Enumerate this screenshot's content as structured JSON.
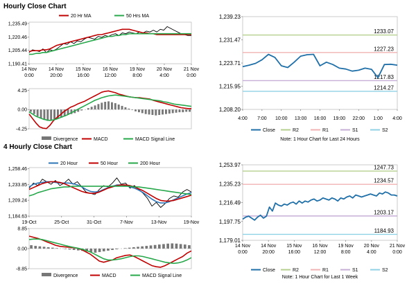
{
  "sections": {
    "hourly": "Hourly Close Chart",
    "four_hourly": "4 Hourly Close Chart"
  },
  "colors": {
    "close": "#1f6fa8",
    "r2": "#b5cf8d",
    "r1": "#f0b2b2",
    "s1": "#c6aed6",
    "s2": "#8fd2e6",
    "ma_short": "#c00000",
    "ma_long": "#27a84b",
    "ma_200": "#27a84b",
    "ma_20": "#2e75b6",
    "divergence": "#777777",
    "macd": "#c00000",
    "signal": "#27a84b",
    "price": "#000000"
  },
  "chart_data": [
    {
      "id": "hourly-ma",
      "type": "line",
      "title": "Hourly Close Chart",
      "ylim": [
        1190.41,
        1237.0
      ],
      "yticks": [
        "1,235.49",
        "1,220.46",
        "1,205.44",
        "1,190.41"
      ],
      "ytick_values": [
        1235.49,
        1220.46,
        1205.44,
        1190.41
      ],
      "xticks": [
        "14 Nov\n0:00",
        "14 Nov\n20:00",
        "15 Nov\n16:00",
        "16 Nov\n12:00",
        "19 Nov\n8:00",
        "20 Nov\n4:00",
        "21 Nov\n0:00"
      ],
      "legend": [
        "20 Hr MA",
        "50 Hrs MA"
      ],
      "series": [
        {
          "name": "Price",
          "values": [
            1203,
            1206,
            1205,
            1204,
            1207,
            1203,
            1206,
            1205,
            1207,
            1210,
            1213,
            1212,
            1215,
            1213,
            1216,
            1215,
            1218,
            1220,
            1219,
            1218,
            1221,
            1220,
            1222,
            1221,
            1223,
            1224,
            1222,
            1225,
            1224,
            1226,
            1225,
            1224,
            1226,
            1225,
            1227,
            1226,
            1228,
            1226,
            1229,
            1228,
            1232,
            1230,
            1228,
            1226,
            1224,
            1223,
            1222,
            1222
          ]
        },
        {
          "name": "20 Hr MA",
          "values": [
            1204,
            1205,
            1205,
            1205,
            1206,
            1206,
            1207,
            1209,
            1211,
            1212,
            1213,
            1214,
            1215,
            1216,
            1217,
            1218,
            1219,
            1220,
            1221,
            1222,
            1223,
            1223,
            1224,
            1225,
            1226,
            1227,
            1228,
            1229,
            1229,
            1229,
            1228,
            1227,
            1226,
            1225,
            1225,
            1224,
            1224,
            1223,
            1223,
            1223,
            1223,
            1223,
            1223,
            1223,
            1223,
            1223,
            1223,
            1223
          ]
        },
        {
          "name": "50 Hrs MA",
          "values": [
            1201,
            1201,
            1202,
            1202,
            1203,
            1203,
            1204,
            1205,
            1206,
            1207,
            1208,
            1209,
            1210,
            1211,
            1212,
            1213,
            1214,
            1215,
            1216,
            1217,
            1218,
            1219,
            1220,
            1221,
            1221,
            1222,
            1222,
            1223,
            1223,
            1224,
            1224,
            1224,
            1224,
            1224,
            1224,
            1224,
            1224,
            1224,
            1224,
            1224,
            1224,
            1224,
            1224,
            1224,
            1224,
            1224,
            1224,
            1224
          ]
        }
      ]
    },
    {
      "id": "hourly-macd",
      "type": "bar",
      "ylim": [
        -4.25,
        4.6
      ],
      "yticks": [
        "4.25",
        "0.00",
        "-4.25"
      ],
      "ytick_values": [
        4.25,
        0,
        -4.25
      ],
      "legend": [
        "Divergence",
        "MACD",
        "MACD Signal Line"
      ],
      "series": [
        {
          "name": "Divergence",
          "values": [
            -0.5,
            -1,
            -1.5,
            -2,
            -2.3,
            -2.5,
            -2.4,
            -2.2,
            -2,
            -1.8,
            -1.5,
            -1.2,
            -1,
            -0.8,
            -0.5,
            -0.2,
            0,
            0.3,
            0.6,
            0.9,
            1.2,
            1.5,
            1.7,
            1.8,
            1.6,
            1.4,
            1.1,
            0.8,
            0.5,
            0.2,
            -0.1,
            -0.4,
            -0.6,
            -0.8,
            -1,
            -1.1,
            -1.2,
            -1.3,
            -1.2,
            -1.1,
            -1,
            -0.9,
            -0.8,
            -0.7,
            -0.6,
            -0.6,
            -0.5,
            -0.5
          ]
        },
        {
          "name": "MACD",
          "values": [
            -1,
            -2,
            -3,
            -3.8,
            -4.1,
            -4.2,
            -3.5,
            -2.5,
            -1.8,
            -1.2,
            -0.5,
            0,
            0.5,
            0.8,
            1.2,
            1.5,
            1.8,
            2.2,
            2.6,
            3.0,
            3.4,
            3.8,
            4.0,
            4.1,
            3.9,
            3.7,
            3.4,
            3.2,
            3.0,
            2.8,
            2.7,
            2.6,
            2.6,
            2.5,
            2.4,
            2.3,
            2.0,
            1.8,
            1.6,
            1.4,
            1.2,
            1.0,
            0.8,
            0.6,
            0.4,
            0.3,
            0.2,
            0.2
          ]
        },
        {
          "name": "MACD Signal Line",
          "values": [
            -0.5,
            -1,
            -1.5,
            -1.8,
            -2.1,
            -2.3,
            -2.4,
            -2.3,
            -2.1,
            -1.8,
            -1.5,
            -1.2,
            -0.8,
            -0.4,
            0,
            0.4,
            0.8,
            1.2,
            1.6,
            2.0,
            2.3,
            2.6,
            2.8,
            3.0,
            3.1,
            3.2,
            3.1,
            3.0,
            2.9,
            2.8,
            2.7,
            2.6,
            2.5,
            2.4,
            2.3,
            2.2,
            2.1,
            2.0,
            1.9,
            1.7,
            1.6,
            1.4,
            1.2,
            1.1,
            1.0,
            0.9,
            0.8,
            0.7
          ]
        }
      ]
    },
    {
      "id": "hourly-close",
      "type": "line",
      "ylim": [
        1208.2,
        1239.23
      ],
      "yticks": [
        "1,239.23",
        "1,231.47",
        "1,223.71",
        "1,215.95",
        "1,208.20"
      ],
      "ytick_values": [
        1239.23,
        1231.47,
        1223.71,
        1215.95,
        1208.2
      ],
      "xticks": [
        "4:00",
        "7:00",
        "10:00",
        "13:00",
        "16:00",
        "19:00",
        "22:00",
        "1:00",
        "4:00"
      ],
      "x_range": [
        0,
        24
      ],
      "levels": [
        {
          "name": "R2",
          "value": 1233.07,
          "label": "1233.07"
        },
        {
          "name": "R1",
          "value": 1227.23,
          "label": "1227.23"
        },
        {
          "name": "S1",
          "value": 1217.83,
          "label": "1217.83"
        },
        {
          "name": "S2",
          "value": 1214.27,
          "label": "1214.27"
        }
      ],
      "series": [
        {
          "name": "Close",
          "x": [
            0,
            1,
            2,
            3,
            4,
            5,
            6,
            7,
            8,
            9,
            10,
            11,
            12,
            13,
            14,
            15,
            16,
            17,
            18,
            19,
            20,
            21,
            22,
            23,
            24
          ],
          "values": [
            1222.5,
            1223.0,
            1223.6,
            1224.8,
            1226.6,
            1225.6,
            1222.8,
            1222.2,
            1224.0,
            1226.0,
            1226.5,
            1226.6,
            1222.8,
            1224.0,
            1223.2,
            1222.0,
            1221.7,
            1221.0,
            1221.3,
            1222.0,
            1221.6,
            1218.8,
            1223.2,
            1223.3,
            1223.0
          ]
        }
      ],
      "legend": [
        "Close",
        "R2",
        "R1",
        "S1",
        "S2"
      ],
      "note": "Note: 1 Hour Chart for Last 24 Hours"
    },
    {
      "id": "four-hourly-ma",
      "type": "line",
      "title": "4 Hourly Close Chart",
      "ylim": [
        1184.63,
        1260.0
      ],
      "yticks": [
        "1,258.46",
        "1,233.85",
        "1,209.24",
        "1,184.63"
      ],
      "ytick_values": [
        1258.46,
        1233.85,
        1209.24,
        1184.63
      ],
      "xticks": [
        "19-Oct",
        "25-Oct",
        "31-Oct",
        "7-Nov",
        "13-Nov",
        "19-Nov"
      ],
      "legend": [
        "20 Hour",
        "50 Hour",
        "200 Hour"
      ],
      "series": [
        {
          "name": "Price",
          "values": [
            1228,
            1236,
            1232,
            1242,
            1238,
            1234,
            1240,
            1232,
            1236,
            1242,
            1234,
            1238,
            1230,
            1222,
            1220,
            1218,
            1226,
            1232,
            1230,
            1236,
            1244,
            1234,
            1236,
            1228,
            1232,
            1226,
            1220,
            1212,
            1200,
            1206,
            1198,
            1204,
            1212,
            1216,
            1214,
            1222,
            1226,
            1222
          ]
        },
        {
          "name": "20 Hour",
          "values": [
            1230,
            1234,
            1236,
            1237,
            1238,
            1238,
            1237,
            1236,
            1236,
            1236,
            1235,
            1233,
            1230,
            1226,
            1223,
            1222,
            1223,
            1226,
            1229,
            1231,
            1233,
            1233,
            1232,
            1230,
            1228,
            1225,
            1221,
            1216,
            1211,
            1207,
            1205,
            1205,
            1207,
            1210,
            1213,
            1216,
            1219,
            1221
          ]
        },
        {
          "name": "50 Hour",
          "values": [
            1226,
            1229,
            1232,
            1235,
            1237,
            1238,
            1238,
            1237,
            1235,
            1232,
            1229,
            1226,
            1223,
            1221,
            1220,
            1220,
            1222,
            1225,
            1228,
            1230,
            1232,
            1233,
            1233,
            1232,
            1230,
            1227,
            1224,
            1220,
            1216,
            1212,
            1209,
            1208,
            1208,
            1209,
            1211,
            1213,
            1215,
            1217
          ]
        },
        {
          "name": "200 Hour",
          "values": [
            1216,
            1218,
            1221,
            1223,
            1225,
            1227,
            1228,
            1229,
            1230,
            1230,
            1231,
            1231,
            1231,
            1231,
            1231,
            1231,
            1231,
            1231,
            1231,
            1231,
            1231,
            1231,
            1231,
            1231,
            1230,
            1230,
            1229,
            1228,
            1227,
            1226,
            1225,
            1224,
            1223,
            1222,
            1221,
            1220,
            1219,
            1218
          ]
        }
      ]
    },
    {
      "id": "four-hourly-macd",
      "type": "bar",
      "ylim": [
        -8.85,
        8.85
      ],
      "yticks": [
        "8.85",
        "0.00",
        "-8.85"
      ],
      "ytick_values": [
        8.85,
        0,
        -8.85
      ],
      "legend": [
        "Divergence",
        "MACD",
        "MACD Signal Line"
      ],
      "series": [
        {
          "name": "Divergence",
          "values": [
            1.5,
            1.2,
            1.0,
            0.8,
            0.6,
            0.4,
            0.2,
            0,
            -0.2,
            -0.4,
            -0.6,
            -0.8,
            -1.0,
            -1.3,
            -1.5,
            -1.8,
            -1.5,
            -1.2,
            -0.9,
            -0.6,
            -0.3,
            0,
            0.2,
            0.4,
            0.6,
            0.8,
            1.0,
            1.2,
            1.4,
            1.6,
            1.8,
            2.0,
            2.2,
            2.3,
            2.2,
            2.0,
            1.8,
            1.5
          ]
        },
        {
          "name": "MACD",
          "values": [
            5.5,
            5.0,
            4.5,
            3.8,
            3.0,
            2.3,
            1.5,
            1.0,
            0.8,
            0.6,
            0.4,
            0.2,
            -0.5,
            -1.5,
            -2.5,
            -4.0,
            -5.5,
            -6.0,
            -5.5,
            -5.0,
            -4.0,
            -3.5,
            -3.0,
            -2.8,
            -3.5,
            -4.5,
            -5.5,
            -6.5,
            -7.5,
            -8.0,
            -8.2,
            -7.5,
            -6.5,
            -5.5,
            -4.5,
            -3.5,
            -2.0,
            -1.0
          ]
        },
        {
          "name": "MACD Signal Line",
          "values": [
            4.0,
            4.2,
            4.2,
            4.0,
            3.5,
            3.0,
            2.5,
            2.0,
            1.5,
            1.0,
            0.6,
            0.2,
            -0.2,
            -0.8,
            -1.5,
            -2.5,
            -3.5,
            -4.5,
            -5.0,
            -5.0,
            -4.8,
            -4.5,
            -4.0,
            -3.5,
            -3.2,
            -3.2,
            -3.5,
            -4.0,
            -4.5,
            -5.0,
            -5.5,
            -6.0,
            -6.3,
            -6.5,
            -6.3,
            -5.8,
            -5.0,
            -4.0
          ]
        }
      ]
    },
    {
      "id": "four-hourly-close",
      "type": "line",
      "ylim": [
        1179.01,
        1253.97
      ],
      "yticks": [
        "1,253.97",
        "1,235.23",
        "1,216.49",
        "1,197.75",
        "1,179.01"
      ],
      "ytick_values": [
        1253.97,
        1235.23,
        1216.49,
        1197.75,
        1179.01
      ],
      "xticks": [
        "14 Nov\n0:00",
        "14 Nov\n20:00",
        "15 Nov\n16:00",
        "16 Nov\n12:00",
        "19 Nov\n8:00",
        "20 Nov\n4:00",
        "21 Nov\n0:00"
      ],
      "levels": [
        {
          "name": "R2",
          "value": 1247.73,
          "label": "1247.73"
        },
        {
          "name": "R1",
          "value": 1234.57,
          "label": "1234.57"
        },
        {
          "name": "S1",
          "value": 1203.17,
          "label": "1203.17"
        },
        {
          "name": "S2",
          "value": 1184.93,
          "label": "1184.93"
        }
      ],
      "series": [
        {
          "name": "Close",
          "values": [
            1200,
            1202,
            1203,
            1201,
            1199,
            1202,
            1204,
            1201,
            1203,
            1212,
            1208,
            1216,
            1214,
            1213,
            1215,
            1214,
            1216,
            1217,
            1215,
            1218,
            1216,
            1218,
            1217,
            1219,
            1220,
            1218,
            1219,
            1221,
            1220,
            1219,
            1221,
            1220,
            1218,
            1221,
            1220,
            1222,
            1223,
            1221,
            1224,
            1223,
            1222,
            1223,
            1224,
            1225,
            1224,
            1223,
            1226,
            1225,
            1227,
            1226,
            1224,
            1224,
            1223
          ]
        }
      ],
      "legend": [
        "Close",
        "R2",
        "R1",
        "S1",
        "S2"
      ],
      "note": "Note: 1 Hour Chart for Last 1 Week"
    }
  ]
}
